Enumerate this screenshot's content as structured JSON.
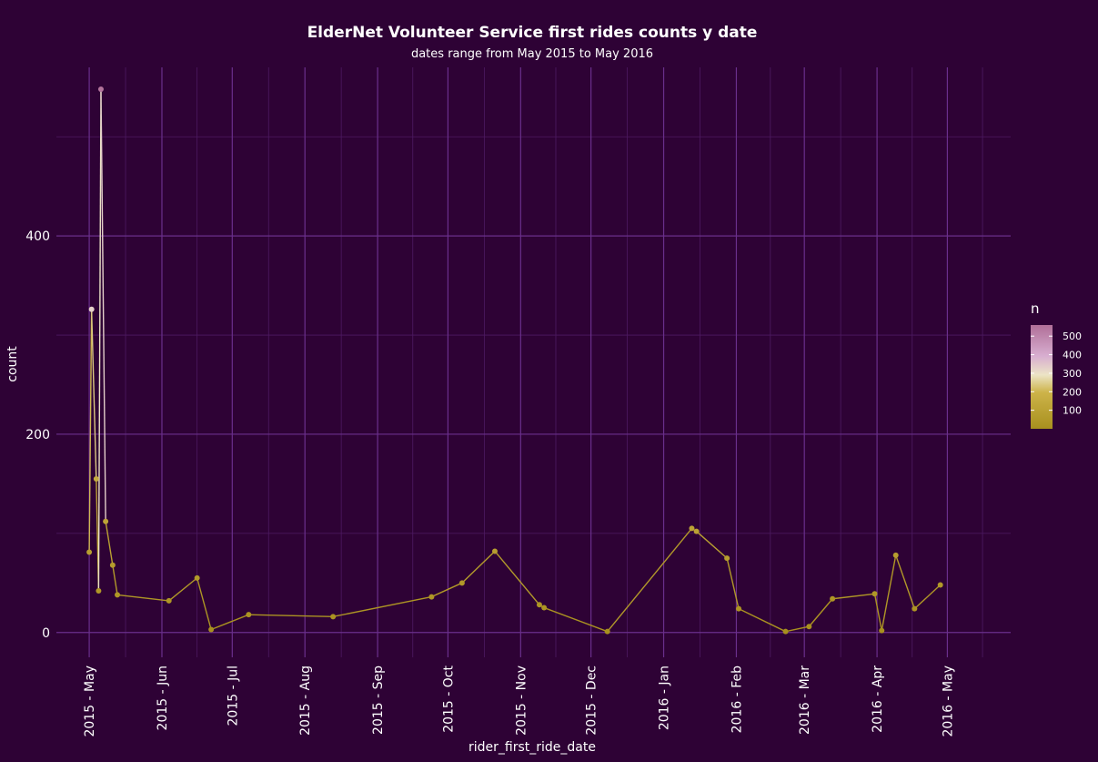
{
  "chart_data": {
    "type": "line",
    "title": "ElderNet Volunteer Service first rides counts y date",
    "subtitle": "dates range from May 2015 to May 2016",
    "xlabel": "rider_first_ride_date",
    "ylabel": "count",
    "x_domain": [
      "2015-04-17",
      "2016-05-28"
    ],
    "ylim": [
      -25,
      570
    ],
    "x_ticks": [
      {
        "date": "2015-05-01",
        "label": "2015 - May"
      },
      {
        "date": "2015-06-01",
        "label": "2015 - Jun"
      },
      {
        "date": "2015-07-01",
        "label": "2015 - Jul"
      },
      {
        "date": "2015-08-01",
        "label": "2015 - Aug"
      },
      {
        "date": "2015-09-01",
        "label": "2015 - Sep"
      },
      {
        "date": "2015-10-01",
        "label": "2015 - Oct"
      },
      {
        "date": "2015-11-01",
        "label": "2015 - Nov"
      },
      {
        "date": "2015-12-01",
        "label": "2015 - Dec"
      },
      {
        "date": "2016-01-01",
        "label": "2016 - Jan"
      },
      {
        "date": "2016-02-01",
        "label": "2016 - Feb"
      },
      {
        "date": "2016-03-01",
        "label": "2016 - Mar"
      },
      {
        "date": "2016-04-01",
        "label": "2016 - Apr"
      },
      {
        "date": "2016-05-01",
        "label": "2016 - May"
      }
    ],
    "y_ticks": [
      {
        "value": 0,
        "label": "0"
      },
      {
        "value": 200,
        "label": "200"
      },
      {
        "value": 400,
        "label": "400"
      }
    ],
    "points": [
      {
        "x": "2015-05-01",
        "y": 81
      },
      {
        "x": "2015-05-02",
        "y": 326
      },
      {
        "x": "2015-05-04",
        "y": 155
      },
      {
        "x": "2015-05-05",
        "y": 42
      },
      {
        "x": "2015-05-06",
        "y": 548
      },
      {
        "x": "2015-05-08",
        "y": 112
      },
      {
        "x": "2015-05-11",
        "y": 68
      },
      {
        "x": "2015-05-13",
        "y": 38
      },
      {
        "x": "2015-06-04",
        "y": 32
      },
      {
        "x": "2015-06-16",
        "y": 55
      },
      {
        "x": "2015-06-22",
        "y": 3
      },
      {
        "x": "2015-07-08",
        "y": 18
      },
      {
        "x": "2015-08-13",
        "y": 16
      },
      {
        "x": "2015-09-24",
        "y": 36
      },
      {
        "x": "2015-10-07",
        "y": 50
      },
      {
        "x": "2015-10-21",
        "y": 82
      },
      {
        "x": "2015-11-09",
        "y": 28
      },
      {
        "x": "2015-11-11",
        "y": 25
      },
      {
        "x": "2015-12-08",
        "y": 1
      },
      {
        "x": "2016-01-13",
        "y": 105
      },
      {
        "x": "2016-01-15",
        "y": 102
      },
      {
        "x": "2016-01-28",
        "y": 75
      },
      {
        "x": "2016-02-02",
        "y": 24
      },
      {
        "x": "2016-02-22",
        "y": 1
      },
      {
        "x": "2016-03-03",
        "y": 6
      },
      {
        "x": "2016-03-13",
        "y": 34
      },
      {
        "x": "2016-03-31",
        "y": 39
      },
      {
        "x": "2016-04-03",
        "y": 2
      },
      {
        "x": "2016-04-09",
        "y": 78
      },
      {
        "x": "2016-04-17",
        "y": 24
      },
      {
        "x": "2016-04-28",
        "y": 48
      }
    ],
    "legend": {
      "title": "n",
      "placement": "right",
      "range": [
        0,
        560
      ],
      "ticks": [
        {
          "value": 100,
          "label": "100"
        },
        {
          "value": 200,
          "label": "200"
        },
        {
          "value": 300,
          "label": "300"
        },
        {
          "value": 400,
          "label": "400"
        },
        {
          "value": 500,
          "label": "500"
        }
      ]
    },
    "grid": true,
    "colors": {
      "background": "#2e0235",
      "grid_major": "#6a2f8c",
      "grid_minor": "#4d1a62",
      "line": "#b39b2a",
      "gradient_low": "#a8901e",
      "gradient_mid": "#ece4c6",
      "gradient_high": "#b06f98"
    }
  }
}
